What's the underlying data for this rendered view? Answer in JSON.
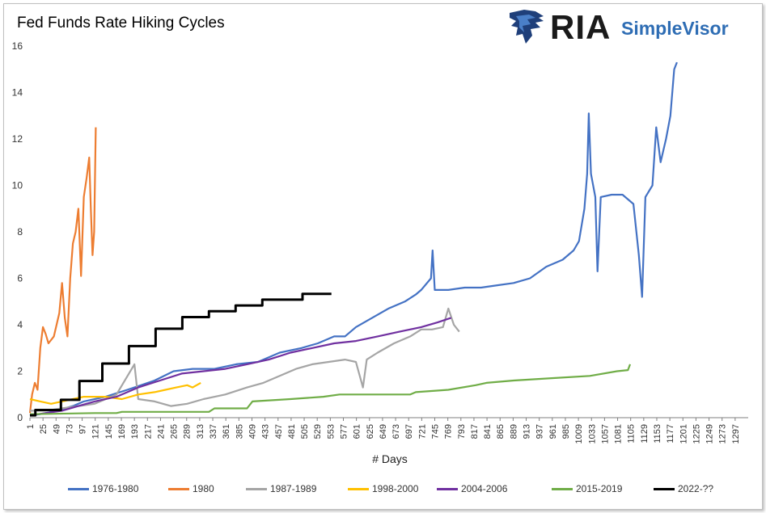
{
  "chart_data": {
    "type": "line",
    "title": "Fed Funds Rate Hiking Cycles",
    "xlabel": "# Days",
    "ylabel": "",
    "xlim": [
      1,
      1321
    ],
    "ylim": [
      0,
      16
    ],
    "yticks": [
      0,
      2,
      4,
      6,
      8,
      10,
      12,
      14,
      16
    ],
    "xticks": [
      1,
      25,
      49,
      73,
      97,
      121,
      145,
      169,
      193,
      217,
      241,
      265,
      289,
      313,
      337,
      361,
      385,
      409,
      433,
      457,
      481,
      505,
      529,
      553,
      577,
      601,
      625,
      649,
      673,
      697,
      721,
      745,
      769,
      793,
      817,
      841,
      865,
      889,
      913,
      937,
      961,
      985,
      1009,
      1033,
      1057,
      1081,
      1105,
      1129,
      1153,
      1177,
      1201,
      1225,
      1249,
      1273,
      1297
    ],
    "grid": false,
    "legend_position": "bottom",
    "series": [
      {
        "name": "1976-1980",
        "color": "#4472c4",
        "points": [
          [
            1,
            0.1
          ],
          [
            20,
            0.15
          ],
          [
            50,
            0.3
          ],
          [
            80,
            0.5
          ],
          [
            100,
            0.7
          ],
          [
            140,
            0.9
          ],
          [
            180,
            1.2
          ],
          [
            230,
            1.6
          ],
          [
            265,
            2.0
          ],
          [
            300,
            2.1
          ],
          [
            340,
            2.1
          ],
          [
            380,
            2.3
          ],
          [
            420,
            2.4
          ],
          [
            460,
            2.8
          ],
          [
            500,
            3.0
          ],
          [
            530,
            3.2
          ],
          [
            560,
            3.5
          ],
          [
            580,
            3.5
          ],
          [
            600,
            3.9
          ],
          [
            630,
            4.3
          ],
          [
            660,
            4.7
          ],
          [
            690,
            5.0
          ],
          [
            710,
            5.3
          ],
          [
            720,
            5.5
          ],
          [
            738,
            6.0
          ],
          [
            741,
            7.2
          ],
          [
            745,
            5.5
          ],
          [
            770,
            5.5
          ],
          [
            800,
            5.6
          ],
          [
            830,
            5.6
          ],
          [
            860,
            5.7
          ],
          [
            890,
            5.8
          ],
          [
            920,
            6.0
          ],
          [
            950,
            6.5
          ],
          [
            980,
            6.8
          ],
          [
            1000,
            7.2
          ],
          [
            1010,
            7.6
          ],
          [
            1020,
            9.0
          ],
          [
            1025,
            10.5
          ],
          [
            1028,
            13.1
          ],
          [
            1032,
            10.5
          ],
          [
            1040,
            9.5
          ],
          [
            1044,
            6.3
          ],
          [
            1050,
            9.5
          ],
          [
            1070,
            9.6
          ],
          [
            1090,
            9.6
          ],
          [
            1110,
            9.2
          ],
          [
            1120,
            7.0
          ],
          [
            1126,
            5.2
          ],
          [
            1132,
            9.5
          ],
          [
            1145,
            10.0
          ],
          [
            1152,
            12.5
          ],
          [
            1160,
            11.0
          ],
          [
            1170,
            12.0
          ],
          [
            1178,
            13.0
          ],
          [
            1185,
            15.0
          ],
          [
            1190,
            15.3
          ]
        ]
      },
      {
        "name": "1980",
        "color": "#ed7d31",
        "points": [
          [
            1,
            0.2
          ],
          [
            5,
            1.0
          ],
          [
            10,
            1.5
          ],
          [
            15,
            1.2
          ],
          [
            20,
            3.0
          ],
          [
            25,
            3.9
          ],
          [
            30,
            3.6
          ],
          [
            35,
            3.2
          ],
          [
            45,
            3.5
          ],
          [
            55,
            4.5
          ],
          [
            60,
            5.8
          ],
          [
            65,
            4.3
          ],
          [
            70,
            3.5
          ],
          [
            75,
            6.0
          ],
          [
            80,
            7.5
          ],
          [
            85,
            8.0
          ],
          [
            90,
            9.0
          ],
          [
            95,
            6.1
          ],
          [
            100,
            9.5
          ],
          [
            105,
            10.3
          ],
          [
            110,
            11.2
          ],
          [
            113,
            9.0
          ],
          [
            116,
            7.0
          ],
          [
            119,
            8.0
          ],
          [
            122,
            12.5
          ]
        ]
      },
      {
        "name": "1987-1989",
        "color": "#a5a5a5",
        "points": [
          [
            1,
            0.3
          ],
          [
            30,
            0.3
          ],
          [
            60,
            0.4
          ],
          [
            90,
            0.5
          ],
          [
            120,
            0.6
          ],
          [
            160,
            1.0
          ],
          [
            193,
            2.3
          ],
          [
            200,
            0.8
          ],
          [
            230,
            0.7
          ],
          [
            260,
            0.5
          ],
          [
            290,
            0.6
          ],
          [
            320,
            0.8
          ],
          [
            360,
            1.0
          ],
          [
            400,
            1.3
          ],
          [
            430,
            1.5
          ],
          [
            460,
            1.8
          ],
          [
            490,
            2.1
          ],
          [
            520,
            2.3
          ],
          [
            550,
            2.4
          ],
          [
            580,
            2.5
          ],
          [
            600,
            2.4
          ],
          [
            613,
            1.3
          ],
          [
            620,
            2.5
          ],
          [
            640,
            2.8
          ],
          [
            670,
            3.2
          ],
          [
            700,
            3.5
          ],
          [
            720,
            3.8
          ],
          [
            740,
            3.8
          ],
          [
            760,
            3.9
          ],
          [
            770,
            4.7
          ],
          [
            780,
            4.0
          ],
          [
            790,
            3.7
          ]
        ]
      },
      {
        "name": "1998-2000",
        "color": "#ffc000",
        "points": [
          [
            1,
            0.8
          ],
          [
            20,
            0.7
          ],
          [
            40,
            0.6
          ],
          [
            60,
            0.7
          ],
          [
            80,
            0.8
          ],
          [
            100,
            0.9
          ],
          [
            120,
            0.9
          ],
          [
            140,
            0.9
          ],
          [
            170,
            0.8
          ],
          [
            200,
            1.0
          ],
          [
            230,
            1.1
          ],
          [
            250,
            1.2
          ],
          [
            270,
            1.3
          ],
          [
            290,
            1.4
          ],
          [
            300,
            1.3
          ],
          [
            315,
            1.5
          ]
        ]
      },
      {
        "name": "2004-2006",
        "color": "#7030a0",
        "points": [
          [
            1,
            0.1
          ],
          [
            30,
            0.2
          ],
          [
            60,
            0.3
          ],
          [
            90,
            0.5
          ],
          [
            120,
            0.7
          ],
          [
            160,
            0.9
          ],
          [
            200,
            1.3
          ],
          [
            240,
            1.6
          ],
          [
            280,
            1.9
          ],
          [
            320,
            2.0
          ],
          [
            360,
            2.1
          ],
          [
            400,
            2.3
          ],
          [
            440,
            2.5
          ],
          [
            480,
            2.8
          ],
          [
            520,
            3.0
          ],
          [
            560,
            3.2
          ],
          [
            600,
            3.3
          ],
          [
            640,
            3.5
          ],
          [
            680,
            3.7
          ],
          [
            720,
            3.9
          ],
          [
            750,
            4.1
          ],
          [
            775,
            4.3
          ]
        ]
      },
      {
        "name": "2015-2019",
        "color": "#70ad47",
        "points": [
          [
            1,
            0.15
          ],
          [
            120,
            0.2
          ],
          [
            160,
            0.2
          ],
          [
            170,
            0.25
          ],
          [
            330,
            0.25
          ],
          [
            340,
            0.4
          ],
          [
            400,
            0.4
          ],
          [
            410,
            0.7
          ],
          [
            480,
            0.8
          ],
          [
            540,
            0.9
          ],
          [
            570,
            1.0
          ],
          [
            700,
            1.0
          ],
          [
            710,
            1.1
          ],
          [
            770,
            1.2
          ],
          [
            820,
            1.4
          ],
          [
            840,
            1.5
          ],
          [
            890,
            1.6
          ],
          [
            960,
            1.7
          ],
          [
            1030,
            1.8
          ],
          [
            1080,
            2.0
          ],
          [
            1100,
            2.05
          ],
          [
            1104,
            2.3
          ]
        ]
      },
      {
        "name": "2022-??",
        "color": "#000000",
        "steps": [
          [
            1,
            0.1
          ],
          [
            11,
            0.33
          ],
          [
            58,
            0.77
          ],
          [
            92,
            1.58
          ],
          [
            134,
            2.33
          ],
          [
            183,
            3.08
          ],
          [
            232,
            3.83
          ],
          [
            281,
            4.33
          ],
          [
            330,
            4.58
          ],
          [
            379,
            4.83
          ],
          [
            428,
            5.08
          ],
          [
            502,
            5.33
          ],
          [
            555,
            5.33
          ]
        ]
      }
    ]
  }
}
